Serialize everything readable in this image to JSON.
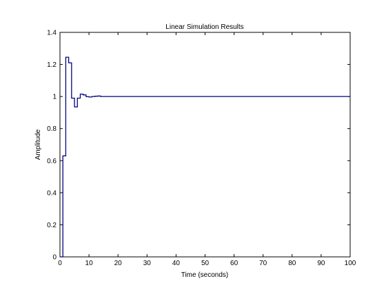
{
  "chart_data": {
    "type": "line",
    "title": "Linear Simulation Results",
    "xlabel": "Time (seconds)",
    "ylabel": "Amplitude",
    "xlim": [
      0,
      100
    ],
    "ylim": [
      0,
      1.4
    ],
    "grid": false,
    "legend": "none",
    "step": true,
    "x_ticks": [
      0,
      10,
      20,
      30,
      40,
      50,
      60,
      70,
      80,
      90,
      100
    ],
    "x_tick_labels": [
      "0",
      "10",
      "20",
      "30",
      "40",
      "50",
      "60",
      "70",
      "80",
      "90",
      "100"
    ],
    "y_ticks": [
      0,
      0.2,
      0.4,
      0.6,
      0.8,
      1,
      1.2,
      1.4
    ],
    "y_tick_labels": [
      "0",
      "0.2",
      "0.4",
      "0.6",
      "0.8",
      "1",
      "1.2",
      "1.4"
    ],
    "line_color": "#000080",
    "series": [
      {
        "x": [
          0,
          1,
          2,
          3,
          4,
          5,
          6,
          7,
          8,
          9,
          10,
          11,
          12,
          13,
          14,
          15,
          100
        ],
        "y": [
          0,
          0.63,
          1.245,
          1.21,
          0.99,
          0.935,
          0.99,
          1.015,
          1.01,
          0.999,
          0.997,
          1.0,
          1.002,
          1.003,
          1.0,
          1.0,
          1.0
        ]
      }
    ]
  }
}
